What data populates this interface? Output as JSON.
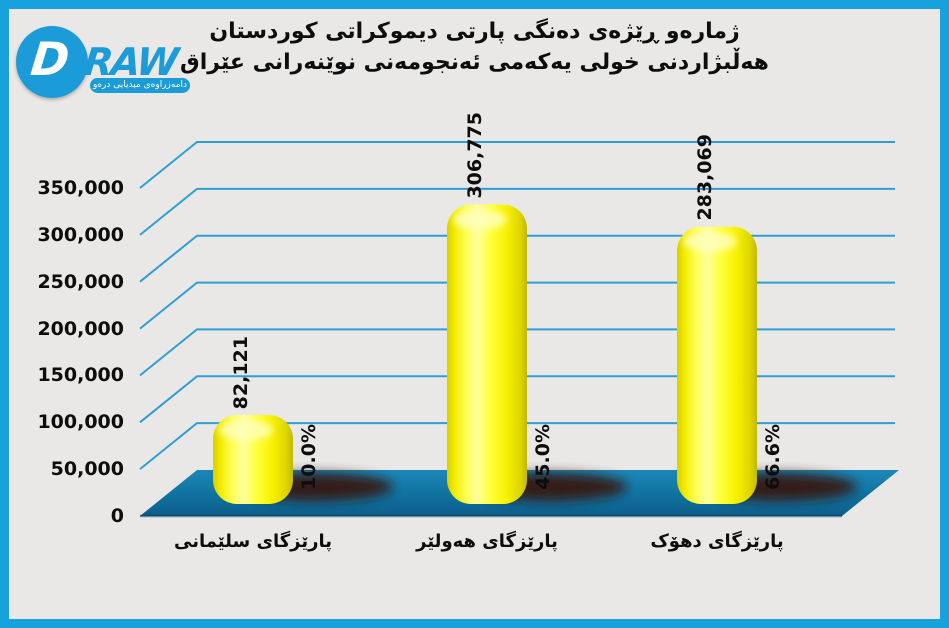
{
  "logo": {
    "brand_d": "D",
    "brand_raw": "RAW",
    "tagline": "دامەزراوەی میدیایی درەو"
  },
  "title": {
    "line1": "ژمارەو ڕێژەی دەنگی پارتی دیموکراتی کوردستان",
    "line2": "هەڵبژاردنی خولی یەکەمی ئەنجومەنی نوێنەرانی عێراق"
  },
  "chart_data": {
    "type": "bar",
    "projection": "3d-perspective",
    "title": "ژمارەو ڕێژەی دەنگی پارتی دیموکراتی کوردستان — هەڵبژاردنی خولی یەکەمی ئەنجومەنی نوێنەرانی عێراق",
    "categories": [
      "پارێزگای سلێمانی",
      "پارێزگای هەولێر",
      "پارێزگای دهۆک"
    ],
    "values": [
      82121,
      306775,
      283069
    ],
    "value_labels": [
      "82,121",
      "306,775",
      "283,069"
    ],
    "percent_labels": [
      "10.0%",
      "45.0%",
      "66.6%"
    ],
    "y_ticks": [
      "0",
      "50,000",
      "100,000",
      "150,000",
      "200,000",
      "250,000",
      "300,000",
      "350,000"
    ],
    "ylim": [
      0,
      350000
    ],
    "grid": true,
    "legend": false,
    "xlabel": "",
    "ylabel": "",
    "colors": {
      "bar": "#FFFF2E",
      "floor": "#1478A8",
      "grid": "#2E9FD6",
      "shadow": "#38120C",
      "border": "#17A2DE",
      "background": "#E9E8E6",
      "logo_blue": "#1B9CD8",
      "text": "#0d0d0d"
    }
  }
}
